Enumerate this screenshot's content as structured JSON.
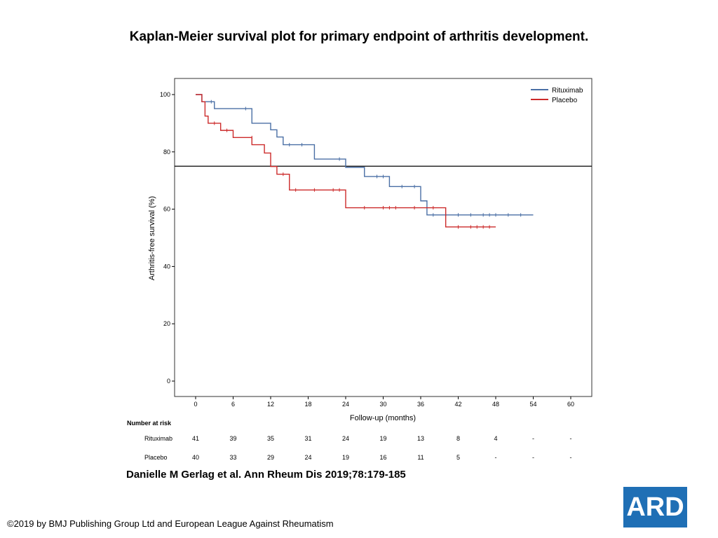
{
  "slide": {
    "title": "Kaplan-Meier survival plot for primary endpoint of arthritis development.",
    "citation": "Danielle M Gerlag et al. Ann Rheum Dis 2019;78:179-185",
    "copyright": "©2019 by BMJ Publishing Group Ltd and European League Against Rheumatism",
    "logo_text": "ARD"
  },
  "colors": {
    "rituximab": "#4a6fa5",
    "placebo": "#cc2a2a",
    "axis": "#000000",
    "logo_bg": "#1f6fb5"
  },
  "chart_data": {
    "type": "line",
    "subtype": "kaplan-meier step",
    "xlabel": "Follow-up (months)",
    "ylabel": "Arthritis-free survival (%)",
    "xlim": [
      0,
      60
    ],
    "ylim": [
      0,
      100
    ],
    "xticks": [
      "0",
      "6",
      "12",
      "18",
      "24",
      "30",
      "36",
      "42",
      "48",
      "54",
      "60"
    ],
    "yticks": [
      "0",
      "20",
      "40",
      "60",
      "80",
      "100"
    ],
    "reference_line_y": 75,
    "legend_position": "top-right",
    "series": [
      {
        "name": "Rituximab",
        "color": "#4a6fa5",
        "steps": [
          [
            0,
            100
          ],
          [
            1,
            97.5
          ],
          [
            3,
            95.1
          ],
          [
            9,
            90
          ],
          [
            12,
            87.7
          ],
          [
            13,
            85.2
          ],
          [
            14,
            82.5
          ],
          [
            19,
            77.5
          ],
          [
            24,
            74.6
          ],
          [
            27,
            71.4
          ],
          [
            31,
            67.9
          ],
          [
            36,
            62.9
          ],
          [
            37,
            58
          ]
        ],
        "end": 54,
        "censors": [
          [
            2.5,
            97.5
          ],
          [
            8,
            95.1
          ],
          [
            15,
            82.5
          ],
          [
            17,
            82.5
          ],
          [
            23,
            77.5
          ],
          [
            29,
            71.4
          ],
          [
            30,
            71.4
          ],
          [
            33,
            67.9
          ],
          [
            35,
            67.9
          ],
          [
            38,
            58
          ],
          [
            40,
            58
          ],
          [
            42,
            58
          ],
          [
            44,
            58
          ],
          [
            46,
            58
          ],
          [
            47,
            58
          ],
          [
            48,
            58
          ],
          [
            50,
            58
          ],
          [
            52,
            58
          ]
        ]
      },
      {
        "name": "Placebo",
        "color": "#cc2a2a",
        "steps": [
          [
            0,
            100
          ],
          [
            1,
            97.5
          ],
          [
            1.5,
            92.5
          ],
          [
            2,
            90
          ],
          [
            4,
            87.5
          ],
          [
            6,
            85
          ],
          [
            9,
            82.5
          ],
          [
            11,
            79.6
          ],
          [
            12,
            74.9
          ],
          [
            13,
            72.2
          ],
          [
            15,
            66.7
          ],
          [
            24,
            60.5
          ],
          [
            40,
            53.8
          ]
        ],
        "end": 48,
        "censors": [
          [
            3,
            90
          ],
          [
            5,
            87.5
          ],
          [
            9,
            85
          ],
          [
            14,
            72.2
          ],
          [
            16,
            66.7
          ],
          [
            19,
            66.7
          ],
          [
            22,
            66.7
          ],
          [
            23,
            66.7
          ],
          [
            27,
            60.5
          ],
          [
            30,
            60.5
          ],
          [
            31,
            60.5
          ],
          [
            32,
            60.5
          ],
          [
            35,
            60.5
          ],
          [
            38,
            60.5
          ],
          [
            42,
            53.8
          ],
          [
            44,
            53.8
          ],
          [
            45,
            53.8
          ],
          [
            46,
            53.8
          ],
          [
            47,
            53.8
          ]
        ]
      }
    ]
  },
  "risk_table": {
    "header": "Number at risk",
    "rows": [
      {
        "label": "Rituximab",
        "values": [
          "41",
          "39",
          "35",
          "31",
          "24",
          "19",
          "13",
          "8",
          "4",
          "-",
          "-"
        ]
      },
      {
        "label": "Placebo",
        "values": [
          "40",
          "33",
          "29",
          "24",
          "19",
          "16",
          "11",
          "5",
          "-",
          "-",
          "-"
        ]
      }
    ]
  }
}
